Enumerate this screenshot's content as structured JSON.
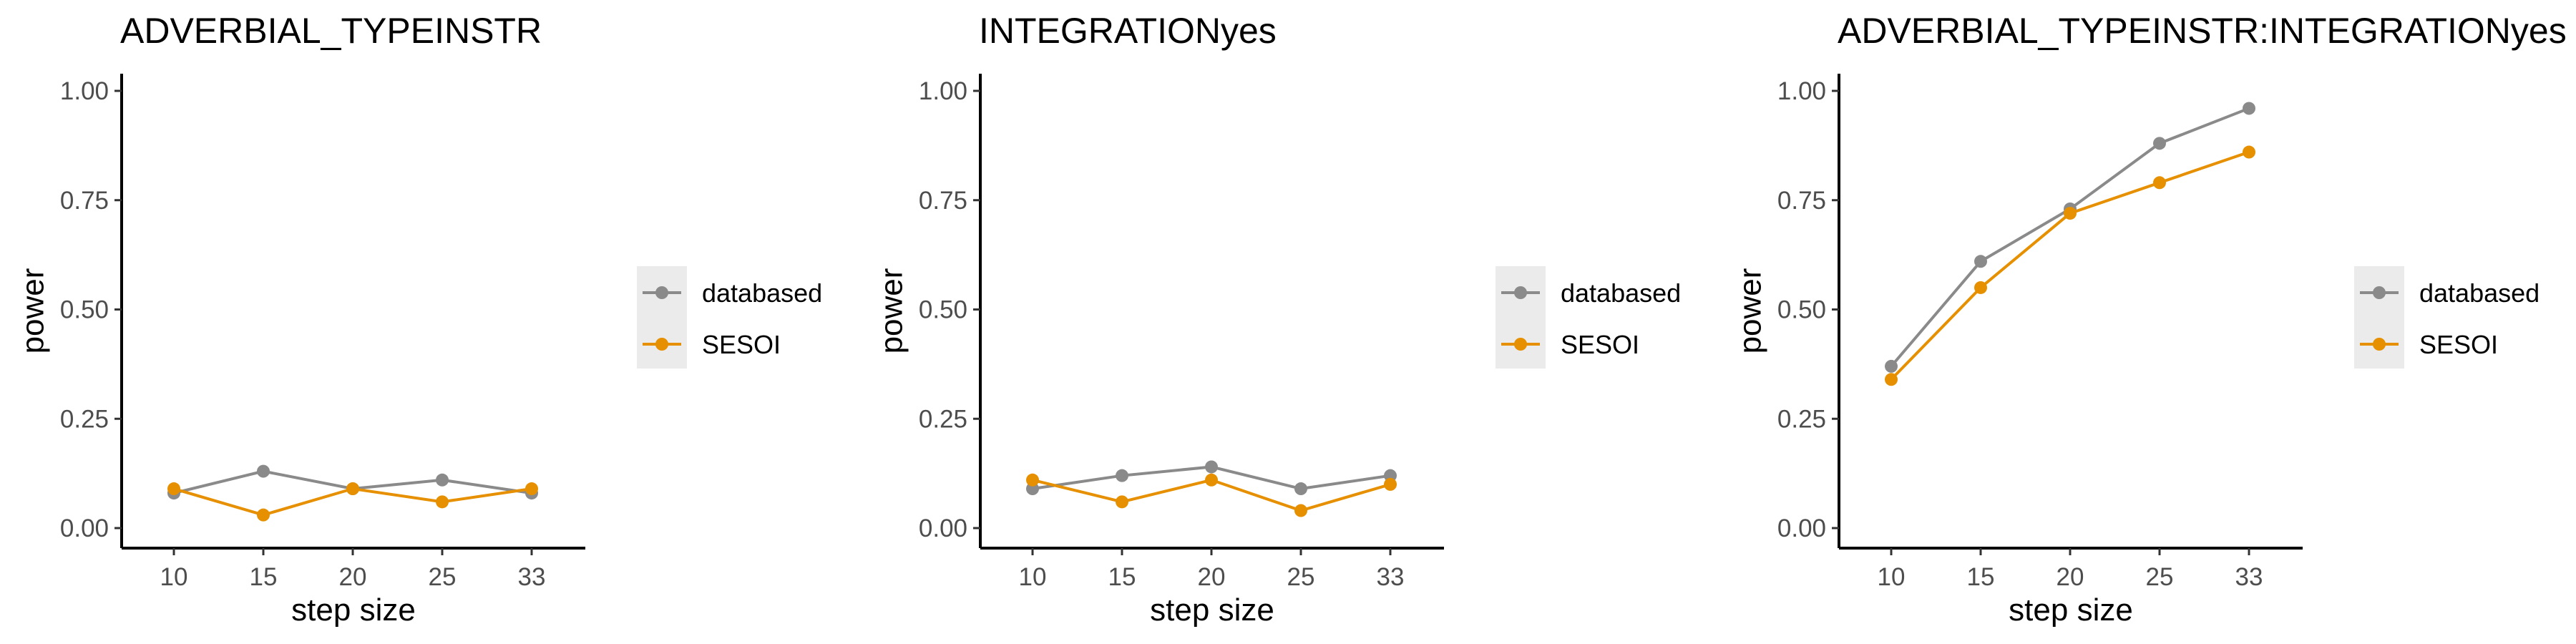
{
  "chart_data": [
    {
      "type": "line",
      "title": "ADVERBIAL_TYPEINSTR",
      "xlabel": "step size",
      "ylabel": "power",
      "categories": [
        "10",
        "15",
        "20",
        "25",
        "33"
      ],
      "ylim": [
        0,
        1
      ],
      "yticks": [
        "0.00",
        "0.25",
        "0.50",
        "0.75",
        "1.00"
      ],
      "grid": false,
      "legend_position": "right",
      "series": [
        {
          "name": "databased",
          "color": "#8a8a8a",
          "values": [
            0.08,
            0.13,
            0.09,
            0.11,
            0.08
          ]
        },
        {
          "name": "SESOI",
          "color": "#e69000",
          "values": [
            0.09,
            0.03,
            0.09,
            0.06,
            0.09
          ]
        }
      ]
    },
    {
      "type": "line",
      "title": "INTEGRATIONyes",
      "xlabel": "step size",
      "ylabel": "power",
      "categories": [
        "10",
        "15",
        "20",
        "25",
        "33"
      ],
      "ylim": [
        0,
        1
      ],
      "yticks": [
        "0.00",
        "0.25",
        "0.50",
        "0.75",
        "1.00"
      ],
      "grid": false,
      "legend_position": "right",
      "series": [
        {
          "name": "databased",
          "color": "#8a8a8a",
          "values": [
            0.09,
            0.12,
            0.14,
            0.09,
            0.12
          ]
        },
        {
          "name": "SESOI",
          "color": "#e69000",
          "values": [
            0.11,
            0.06,
            0.11,
            0.04,
            0.1
          ]
        }
      ]
    },
    {
      "type": "line",
      "title": "ADVERBIAL_TYPEINSTR:INTEGRATIONyes",
      "xlabel": "step size",
      "ylabel": "power",
      "categories": [
        "10",
        "15",
        "20",
        "25",
        "33"
      ],
      "ylim": [
        0,
        1
      ],
      "yticks": [
        "0.00",
        "0.25",
        "0.50",
        "0.75",
        "1.00"
      ],
      "grid": false,
      "legend_position": "right",
      "series": [
        {
          "name": "databased",
          "color": "#8a8a8a",
          "values": [
            0.37,
            0.61,
            0.73,
            0.88,
            0.96
          ]
        },
        {
          "name": "SESOI",
          "color": "#e69000",
          "values": [
            0.34,
            0.55,
            0.72,
            0.79,
            0.86
          ]
        }
      ]
    }
  ]
}
